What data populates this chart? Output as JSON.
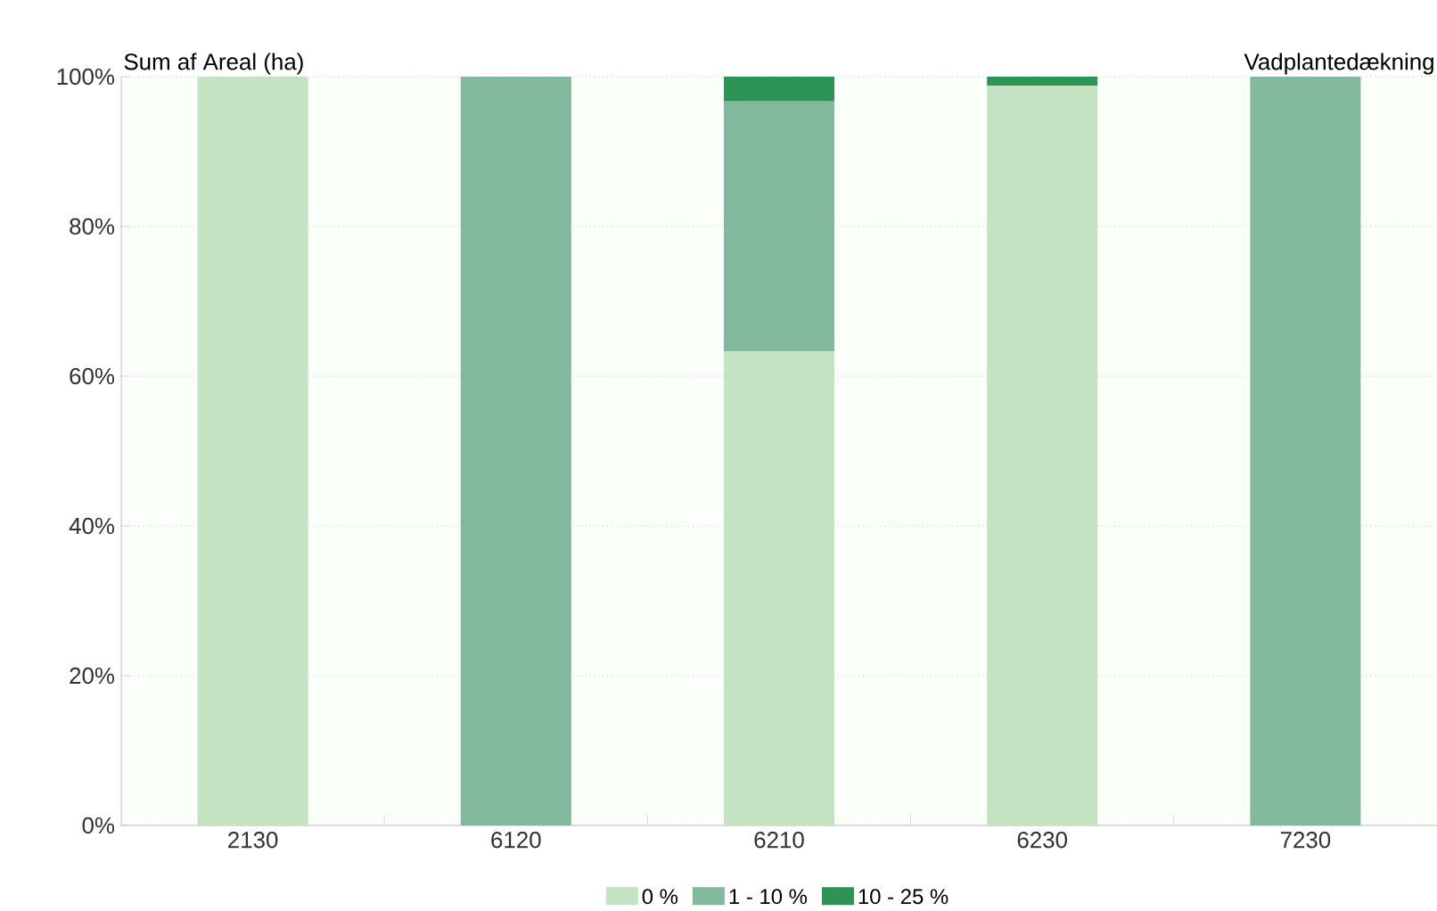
{
  "chart_data": {
    "type": "bar",
    "stacked": true,
    "ylabel": "Sum af Areal (ha)",
    "legend_title": "Vadplantedækning",
    "categories": [
      "2130",
      "6120",
      "6210",
      "6230",
      "7230"
    ],
    "series": [
      {
        "name": "0 %",
        "color": "#c4e3c3",
        "values": [
          100,
          0,
          63.3,
          98.8,
          0
        ]
      },
      {
        "name": "1 - 10 %",
        "color": "#82b99c",
        "values": [
          0,
          100,
          33.4,
          0,
          100
        ]
      },
      {
        "name": "10 - 25 %",
        "color": "#2e9455",
        "values": [
          0,
          0,
          3.3,
          1.2,
          0
        ]
      }
    ],
    "ylim": [
      0,
      100
    ],
    "yticks": [
      {
        "value": 0,
        "label": "0%"
      },
      {
        "value": 20,
        "label": "20%"
      },
      {
        "value": 40,
        "label": "40%"
      },
      {
        "value": 60,
        "label": "60%"
      },
      {
        "value": 80,
        "label": "80%"
      },
      {
        "value": 100,
        "label": "100%"
      }
    ],
    "grid": "y",
    "legend": "bottom"
  }
}
